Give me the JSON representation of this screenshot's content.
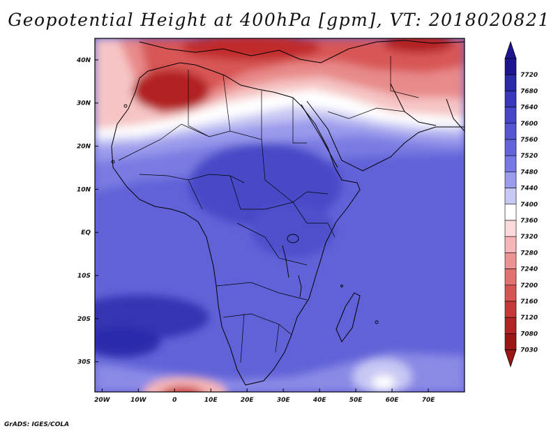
{
  "title": "Geopotential Height at 400hPa [gpm], VT: 2018020821",
  "credit": "GrADS: IGES/COLA",
  "map": {
    "variable": "Geopotential Height",
    "level": "400hPa",
    "units": "gpm",
    "valid_time": "2018020821",
    "projection": "latlon",
    "lon_range": [
      -22,
      80
    ],
    "lat_range": [
      -37,
      45
    ],
    "lon_ticks": [
      {
        "value": -20,
        "label": "20W"
      },
      {
        "value": -10,
        "label": "10W"
      },
      {
        "value": 0,
        "label": "0"
      },
      {
        "value": 10,
        "label": "10E"
      },
      {
        "value": 20,
        "label": "20E"
      },
      {
        "value": 30,
        "label": "30E"
      },
      {
        "value": 40,
        "label": "40E"
      },
      {
        "value": 50,
        "label": "50E"
      },
      {
        "value": 60,
        "label": "60E"
      },
      {
        "value": 70,
        "label": "70E"
      }
    ],
    "lat_ticks": [
      {
        "value": 40,
        "label": "40N"
      },
      {
        "value": 30,
        "label": "30N"
      },
      {
        "value": 20,
        "label": "20N"
      },
      {
        "value": 10,
        "label": "10N"
      },
      {
        "value": 0,
        "label": "EQ"
      },
      {
        "value": -10,
        "label": "10S"
      },
      {
        "value": -20,
        "label": "20S"
      },
      {
        "value": -30,
        "label": "30S"
      }
    ]
  },
  "colorbar": {
    "labels": [
      "7720",
      "7680",
      "7640",
      "7600",
      "7560",
      "7520",
      "7480",
      "7440",
      "7400",
      "7360",
      "7320",
      "7280",
      "7240",
      "7200",
      "7160",
      "7120",
      "7080",
      "7030"
    ],
    "colors": [
      "#1c1490",
      "#2a2aa6",
      "#3838b8",
      "#4646c6",
      "#5656d0",
      "#6464da",
      "#7878e2",
      "#9c9cec",
      "#c8c8f4",
      "#ffffff",
      "#fadada",
      "#f4b6b6",
      "#ec9494",
      "#e27272",
      "#d65454",
      "#c83838",
      "#b22424",
      "#9c1414"
    ]
  },
  "legend_colors": {
    "top_arrow": "#1c1490",
    "bottom_arrow": "#9c1414",
    "coast": "#000000"
  }
}
